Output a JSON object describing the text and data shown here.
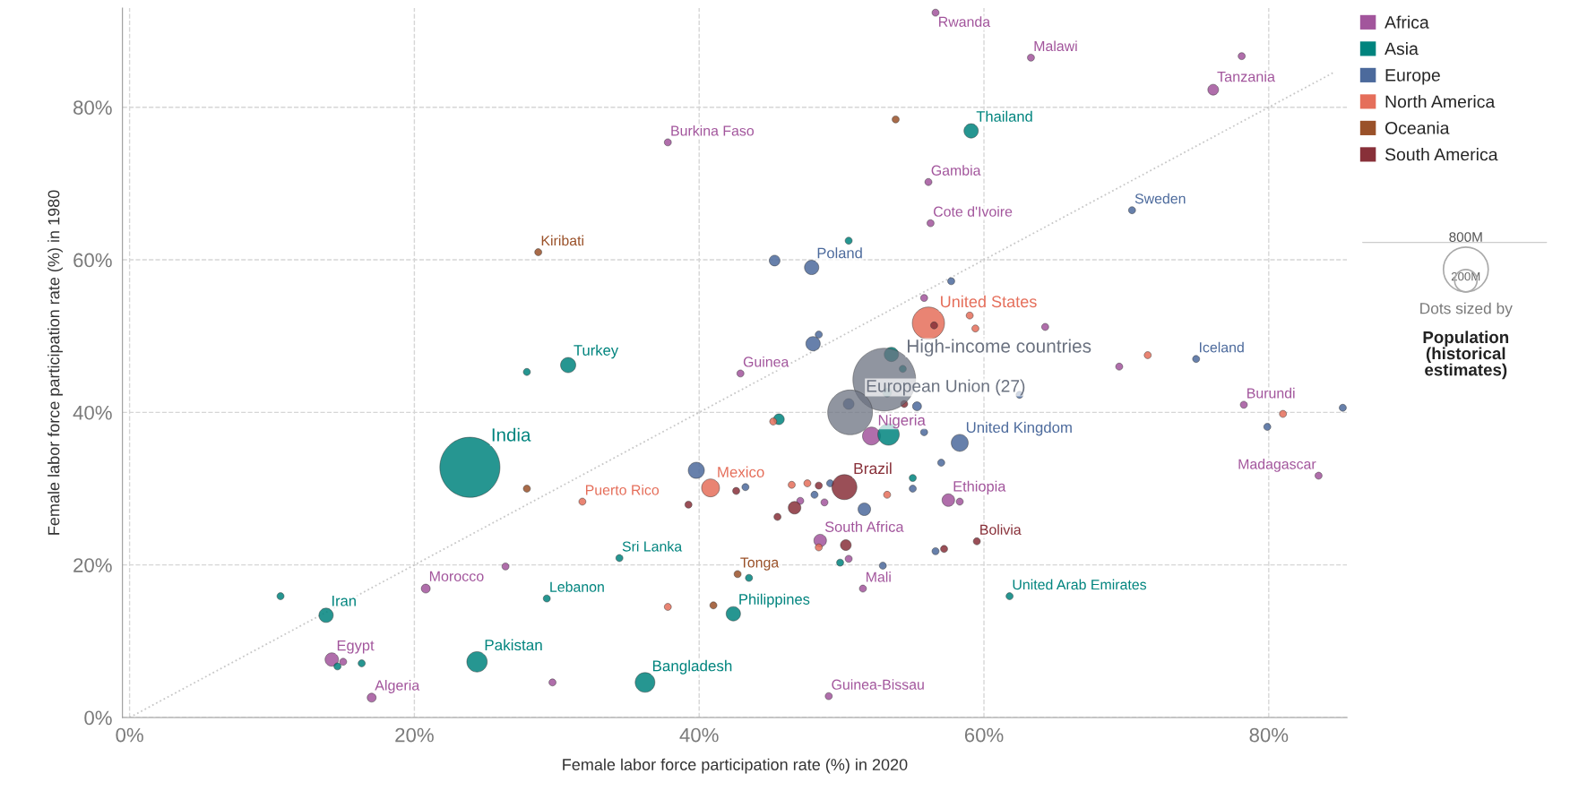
{
  "chart_data": {
    "type": "bubble",
    "xlabel": "Female labor force participation rate (%) in 2020",
    "ylabel": "Female labor force participation rate (%) in 1980",
    "xlim": [
      -0.5,
      85.5
    ],
    "ylim": [
      0,
      93
    ],
    "xticks": [
      {
        "value": 0,
        "label": "0%"
      },
      {
        "value": 20,
        "label": "20%"
      },
      {
        "value": 40,
        "label": "40%"
      },
      {
        "value": 60,
        "label": "60%"
      },
      {
        "value": 80,
        "label": "80%"
      }
    ],
    "yticks": [
      {
        "value": 0,
        "label": "0%"
      },
      {
        "value": 20,
        "label": "20%"
      },
      {
        "value": 40,
        "label": "40%"
      },
      {
        "value": 60,
        "label": "60%"
      },
      {
        "value": 80,
        "label": "80%"
      }
    ],
    "grid": true,
    "legend": "top right",
    "size_legend": [
      {
        "value": 800,
        "label": "800M"
      },
      {
        "value": 200,
        "label": "200M"
      }
    ],
    "series": [
      {
        "type": "line",
        "color": "#c8c8c8",
        "line_style": "dotted",
        "marker": "none",
        "x": [
          0,
          84.6
        ],
        "values": [
          0,
          84.6
        ]
      },
      {
        "name": "Africa",
        "color": "#a2559c",
        "x": [
          56.6,
          63.3,
          78.1,
          76.1,
          37.8,
          56.1,
          56.25,
          42.9,
          55.8,
          64.3,
          69.5,
          78.25,
          83.5,
          52.1,
          57.5,
          58.3,
          47.1,
          48.8,
          48.5,
          50.5,
          51.5,
          49.1,
          20.8,
          26.4,
          14.2,
          15.0,
          17.0,
          29.7
        ],
        "values": [
          92.4,
          86.5,
          86.7,
          82.3,
          75.4,
          70.2,
          64.8,
          45.1,
          55.0,
          51.2,
          46.0,
          41.0,
          31.7,
          36.9,
          28.5,
          28.3,
          28.4,
          28.2,
          23.2,
          20.8,
          16.9,
          2.8,
          16.9,
          19.8,
          7.6,
          7.3,
          2.6,
          4.6
        ],
        "sizes": [
          20,
          20,
          20,
          46,
          20,
          20,
          20,
          20,
          20,
          20,
          20,
          20,
          20,
          128,
          63,
          20,
          20,
          20,
          63,
          20,
          20,
          20,
          32,
          20,
          72,
          20,
          32,
          20
        ]
      },
      {
        "name": "Asia",
        "color": "#00847e",
        "x": [
          59.1,
          50.5,
          30.8,
          27.9,
          23.9,
          34.4,
          13.8,
          10.6,
          29.3,
          14.6,
          16.3,
          24.4,
          36.2,
          53.5,
          54.3,
          53.2,
          45.6,
          53.3,
          55.0,
          49.9,
          61.8,
          43.5,
          42.4
        ],
        "values": [
          76.9,
          62.5,
          46.2,
          45.3,
          32.8,
          20.9,
          13.4,
          15.9,
          15.6,
          6.7,
          7.1,
          7.3,
          4.6,
          47.6,
          45.7,
          42.6,
          39.1,
          37.1,
          31.4,
          20.3,
          15.9,
          18.3,
          13.6
        ],
        "sizes": [
          82,
          20,
          92,
          20,
          1440,
          20,
          82,
          20,
          20,
          20,
          20,
          166,
          155,
          82,
          20,
          32,
          46,
          184,
          20,
          20,
          20,
          20,
          82
        ]
      },
      {
        "name": "Europe",
        "color": "#4c6a9c",
        "x": [
          70.4,
          45.3,
          47.9,
          57.7,
          48.4,
          48.0,
          50.5,
          55.3,
          62.5,
          55.8,
          58.3,
          57.0,
          55.0,
          51.6,
          39.8,
          43.25,
          49.2,
          48.1,
          52.9,
          56.6,
          74.9,
          85.2,
          79.9
        ],
        "values": [
          66.5,
          59.9,
          59.0,
          57.2,
          50.2,
          49.0,
          41.1,
          40.8,
          42.3,
          37.4,
          36.0,
          33.4,
          30.0,
          27.3,
          32.4,
          30.2,
          30.7,
          29.2,
          19.9,
          21.8,
          47.0,
          40.6,
          38.1
        ],
        "sizes": [
          20,
          46,
          82,
          20,
          20,
          82,
          46,
          32,
          20,
          20,
          115,
          20,
          20,
          63,
          104,
          20,
          20,
          20,
          20,
          20,
          20,
          20,
          20
        ]
      },
      {
        "name": "North America",
        "color": "#e56e5a",
        "x": [
          56.1,
          59.0,
          59.4,
          71.5,
          81.0,
          45.2,
          40.8,
          31.8,
          46.5,
          47.6,
          53.2,
          48.4,
          37.8
        ],
        "values": [
          51.7,
          52.7,
          51.0,
          47.5,
          39.8,
          38.8,
          30.1,
          28.3,
          30.5,
          30.7,
          29.2,
          22.3,
          14.5
        ],
        "sizes": [
          415,
          20,
          20,
          20,
          20,
          20,
          128,
          20,
          20,
          20,
          20,
          20,
          20
        ]
      },
      {
        "name": "Oceania",
        "color": "#9a5129",
        "x": [
          53.8,
          28.7,
          27.9,
          42.7,
          41.0
        ],
        "values": [
          78.4,
          61.0,
          30.0,
          18.8,
          14.7
        ],
        "sizes": [
          20,
          20,
          20,
          20,
          20
        ]
      },
      {
        "name": "South America",
        "color": "#883039",
        "x": [
          56.5,
          54.4,
          50.2,
          39.25,
          42.6,
          48.4,
          46.7,
          45.5,
          50.3,
          57.2,
          59.5
        ],
        "values": [
          51.4,
          41.1,
          30.2,
          27.9,
          29.7,
          30.4,
          27.5,
          26.3,
          22.6,
          22.1,
          23.1
        ],
        "sizes": [
          20,
          20,
          250,
          20,
          20,
          20,
          63,
          20,
          46,
          20,
          20
        ]
      },
      {
        "color": "#6b7280",
        "x": [
          53.0,
          50.6
        ],
        "values": [
          44.3,
          40.0
        ],
        "sizes": [
          1570,
          800
        ]
      }
    ],
    "annotations": [
      {
        "text": "Rwanda",
        "x": 56.6,
        "y": 92.4
      },
      {
        "text": "Malawi",
        "x": 63.3,
        "y": 86.5
      },
      {
        "text": "Tanzania",
        "x": 76.1,
        "y": 82.3
      },
      {
        "text": "Burkina Faso",
        "x": 37.8,
        "y": 75.4
      },
      {
        "text": "Thailand",
        "x": 59.1,
        "y": 76.9
      },
      {
        "text": "Gambia",
        "x": 56.1,
        "y": 70.2
      },
      {
        "text": "Sweden",
        "x": 70.4,
        "y": 66.5
      },
      {
        "text": "Cote d'Ivoire",
        "x": 56.25,
        "y": 64.8
      },
      {
        "text": "Kiribati",
        "x": 28.7,
        "y": 61.0
      },
      {
        "text": "Poland",
        "x": 47.9,
        "y": 59.0
      },
      {
        "text": "United States",
        "x": 56.1,
        "y": 51.7
      },
      {
        "text": "High-income countries",
        "x": 53.0,
        "y": 44.3
      },
      {
        "text": "European Union (27)",
        "x": 50.6,
        "y": 40.0
      },
      {
        "text": "Turkey",
        "x": 30.8,
        "y": 46.2
      },
      {
        "text": "Guinea",
        "x": 42.9,
        "y": 45.1
      },
      {
        "text": "Iceland",
        "x": 74.9,
        "y": 47.0
      },
      {
        "text": "Burundi",
        "x": 78.25,
        "y": 41.0
      },
      {
        "text": "India",
        "x": 23.9,
        "y": 32.8
      },
      {
        "text": "Nigeria",
        "x": 52.1,
        "y": 36.9
      },
      {
        "text": "United Kingdom",
        "x": 58.3,
        "y": 36.0
      },
      {
        "text": "Madagascar",
        "x": 83.5,
        "y": 31.7
      },
      {
        "text": "Mexico",
        "x": 40.8,
        "y": 30.1
      },
      {
        "text": "Brazil",
        "x": 50.2,
        "y": 30.2
      },
      {
        "text": "Puerto Rico",
        "x": 31.8,
        "y": 28.3
      },
      {
        "text": "Ethiopia",
        "x": 57.5,
        "y": 28.5
      },
      {
        "text": "South Africa",
        "x": 48.5,
        "y": 23.2
      },
      {
        "text": "Bolivia",
        "x": 59.5,
        "y": 23.1
      },
      {
        "text": "Sri Lanka",
        "x": 34.4,
        "y": 20.9
      },
      {
        "text": "Tonga",
        "x": 42.7,
        "y": 18.8
      },
      {
        "text": "Morocco",
        "x": 20.8,
        "y": 16.9
      },
      {
        "text": "Mali",
        "x": 51.5,
        "y": 16.9
      },
      {
        "text": "Lebanon",
        "x": 29.3,
        "y": 15.6
      },
      {
        "text": "United Arab Emirates",
        "x": 61.8,
        "y": 15.9
      },
      {
        "text": "Iran",
        "x": 13.8,
        "y": 13.4
      },
      {
        "text": "Philippines",
        "x": 42.4,
        "y": 13.6
      },
      {
        "text": "Egypt",
        "x": 14.2,
        "y": 7.6
      },
      {
        "text": "Pakistan",
        "x": 24.4,
        "y": 7.3
      },
      {
        "text": "Bangladesh",
        "x": 36.2,
        "y": 4.6
      },
      {
        "text": "Algeria",
        "x": 17.0,
        "y": 2.6
      },
      {
        "text": "Guinea-Bissau",
        "x": 49.1,
        "y": 2.8
      },
      "Dots sized by",
      "Population (historical estimates)"
    ]
  }
}
